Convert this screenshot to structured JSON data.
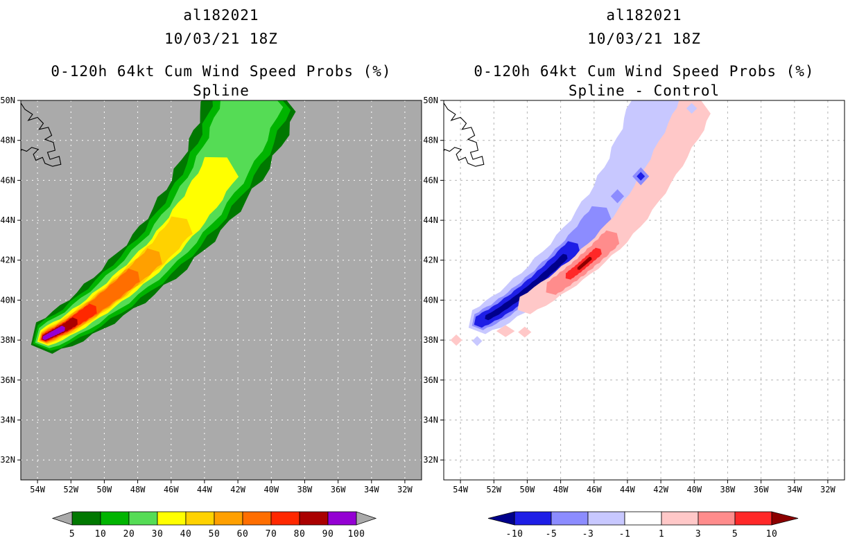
{
  "left_panel": {
    "storm_id": "al182021",
    "datetime": "10/03/21 18Z",
    "title": "0-120h 64kt Cum Wind Speed Probs (%)",
    "subtitle": "Spline"
  },
  "right_panel": {
    "storm_id": "al182021",
    "datetime": "10/03/21 18Z",
    "title": "0-120h 64kt Cum Wind Speed Probs (%)",
    "subtitle": "Spline - Control"
  },
  "map": {
    "projection": "lat-lon",
    "coastline_lon_lat": [
      [
        55.1,
        50.0
      ],
      [
        54.75,
        49.55
      ],
      [
        54.3,
        49.3
      ],
      [
        54.55,
        49.0
      ],
      [
        54.0,
        49.15
      ],
      [
        53.65,
        48.85
      ],
      [
        53.9,
        48.55
      ],
      [
        53.35,
        48.65
      ],
      [
        53.15,
        48.25
      ],
      [
        53.55,
        48.05
      ],
      [
        53.05,
        47.9
      ],
      [
        52.95,
        47.5
      ],
      [
        53.4,
        47.4
      ],
      [
        53.25,
        47.05
      ],
      [
        52.7,
        47.2
      ],
      [
        52.6,
        46.8
      ],
      [
        53.1,
        46.7
      ],
      [
        53.55,
        46.85
      ],
      [
        53.7,
        47.15
      ],
      [
        54.1,
        47.0
      ],
      [
        54.25,
        47.3
      ],
      [
        53.95,
        47.55
      ],
      [
        54.35,
        47.65
      ],
      [
        54.65,
        47.45
      ],
      [
        54.95,
        47.55
      ],
      [
        55.1,
        47.3
      ]
    ]
  },
  "chart_data": [
    {
      "type": "heatmap",
      "subtype": "filled-contour-map",
      "name": "cumulative_wind_speed_probability",
      "units": "%",
      "background": "#aaaaaa",
      "grid_color": "#ffffff",
      "grid_dash": "2 6",
      "x_axis": {
        "labels": [
          "54W",
          "52W",
          "50W",
          "48W",
          "46W",
          "44W",
          "42W",
          "40W",
          "38W",
          "36W",
          "34W",
          "32W"
        ],
        "values_deg_w": [
          54,
          52,
          50,
          48,
          46,
          44,
          42,
          40,
          38,
          36,
          34,
          32
        ],
        "range_deg_w": [
          55,
          31
        ]
      },
      "y_axis": {
        "labels": [
          "50N",
          "48N",
          "46N",
          "44N",
          "42N",
          "40N",
          "38N",
          "36N",
          "34N",
          "32N"
        ],
        "values_deg_n": [
          50,
          48,
          46,
          44,
          42,
          40,
          38,
          36,
          34,
          32
        ],
        "range_deg_n": [
          50,
          31
        ]
      },
      "levels": [
        5,
        10,
        20,
        30,
        40,
        50,
        60,
        70,
        80,
        90,
        100
      ],
      "colorbar": {
        "labels": [
          "5",
          "10",
          "20",
          "30",
          "40",
          "50",
          "60",
          "70",
          "80",
          "90",
          "100"
        ],
        "segment_colors": [
          "#007800",
          "#00b400",
          "#55dc55",
          "#ffff00",
          "#ffd200",
          "#ffa000",
          "#ff6e00",
          "#ff2800",
          "#aa0000",
          "#9400d3"
        ],
        "below_color": "#aaaaaa",
        "above_color": "#aaaaaa"
      },
      "swaths": [
        {
          "name": "probability-swath",
          "centerline_lon_lat": [
            [
              53.6,
              38.1
            ],
            [
              52.2,
              38.7
            ],
            [
              50.8,
              39.5
            ],
            [
              49.4,
              40.4
            ],
            [
              48.0,
              41.4
            ],
            [
              46.6,
              42.5
            ],
            [
              45.4,
              43.7
            ],
            [
              44.3,
              44.9
            ],
            [
              43.3,
              46.2
            ],
            [
              42.4,
              47.5
            ],
            [
              41.7,
              48.8
            ],
            [
              41.1,
              50.2
            ]
          ],
          "bands": [
            {
              "level": 5,
              "color": "#007800",
              "t": [
                0,
                1
              ],
              "halfwidth_deg": [
                0.95,
                2.55
              ]
            },
            {
              "level": 10,
              "color": "#00b400",
              "t": [
                0,
                1
              ],
              "halfwidth_deg": [
                0.8,
                2.1
              ]
            },
            {
              "level": 20,
              "color": "#55dc55",
              "t": [
                0,
                1
              ],
              "halfwidth_deg": [
                0.65,
                1.65
              ]
            },
            {
              "level": 30,
              "color": "#ffff00",
              "t": [
                0,
                0.76
              ],
              "halfwidth_deg": [
                0.5,
                1.0
              ]
            },
            {
              "level": 40,
              "color": "#ffd200",
              "t": [
                0,
                0.55
              ],
              "halfwidth_deg": [
                0.4,
                0.7
              ]
            },
            {
              "level": 50,
              "color": "#ffa000",
              "t": [
                0,
                0.43
              ],
              "halfwidth_deg": [
                0.34,
                0.56
              ]
            },
            {
              "level": 60,
              "color": "#ff6e00",
              "t": [
                0,
                0.35
              ],
              "halfwidth_deg": [
                0.28,
                0.46
              ]
            },
            {
              "level": 70,
              "color": "#ff2800",
              "t": [
                0,
                0.19
              ],
              "halfwidth_deg": [
                0.23,
                0.34
              ]
            },
            {
              "level": 80,
              "color": "#aa0000",
              "t": [
                0,
                0.12
              ],
              "halfwidth_deg": [
                0.18,
                0.25
              ]
            },
            {
              "level": 90,
              "color": "#9400d3",
              "t": [
                0,
                0.075
              ],
              "halfwidth_deg": [
                0.12,
                0.16
              ]
            }
          ]
        }
      ],
      "spots": []
    },
    {
      "type": "heatmap",
      "subtype": "filled-contour-difference-map",
      "name": "probability_difference_spline_minus_control",
      "units": "%",
      "background": "#ffffff",
      "grid_color": "#b4b4b4",
      "grid_dash": "3 5",
      "x_axis": {
        "labels": [
          "54W",
          "52W",
          "50W",
          "48W",
          "46W",
          "44W",
          "42W",
          "40W",
          "38W",
          "36W",
          "34W",
          "32W"
        ],
        "values_deg_w": [
          54,
          52,
          50,
          48,
          46,
          44,
          42,
          40,
          38,
          36,
          34,
          32
        ],
        "range_deg_w": [
          55,
          31
        ]
      },
      "y_axis": {
        "labels": [
          "50N",
          "48N",
          "46N",
          "44N",
          "42N",
          "40N",
          "38N",
          "36N",
          "34N",
          "32N"
        ],
        "values_deg_n": [
          50,
          48,
          46,
          44,
          42,
          40,
          38,
          36,
          34,
          32
        ],
        "range_deg_n": [
          50,
          31
        ]
      },
      "levels": [
        -10,
        -5,
        -3,
        -1,
        1,
        3,
        5,
        10
      ],
      "colorbar": {
        "labels": [
          "-10",
          "-5",
          "-3",
          "-1",
          "1",
          "3",
          "5",
          "10"
        ],
        "segment_colors": [
          "#1e1ee6",
          "#8c8cff",
          "#c8c8ff",
          "#ffffff",
          "#ffc8c8",
          "#ff8c8c",
          "#ff2828"
        ],
        "below_color": "#00008b",
        "above_color": "#8b0000"
      },
      "swaths": [
        {
          "name": "negative-difference-swath",
          "centerline_lon_lat": [
            [
              52.9,
              38.9
            ],
            [
              51.8,
              39.4
            ],
            [
              50.6,
              40.1
            ],
            [
              49.4,
              40.9
            ],
            [
              48.2,
              41.8
            ],
            [
              47.0,
              42.8
            ],
            [
              45.9,
              43.9
            ],
            [
              44.9,
              45.0
            ],
            [
              44.0,
              46.2
            ],
            [
              43.2,
              47.5
            ],
            [
              42.5,
              48.8
            ],
            [
              42.0,
              50.1
            ]
          ],
          "bands": [
            {
              "level": -1,
              "color": "#c8c8ff",
              "t": [
                0,
                1
              ],
              "halfwidth_deg": [
                0.75,
                1.6
              ]
            },
            {
              "level": -3,
              "color": "#8c8cff",
              "t": [
                0,
                0.58
              ],
              "halfwidth_deg": [
                0.5,
                0.7
              ]
            },
            {
              "level": -5,
              "color": "#1e1ee6",
              "t": [
                0,
                0.44
              ],
              "halfwidth_deg": [
                0.35,
                0.48
              ]
            },
            {
              "level": -10,
              "color": "#00008b",
              "t": [
                0.04,
                0.4
              ],
              "halfwidth_deg": [
                0.15,
                0.18
              ]
            }
          ]
        },
        {
          "name": "positive-difference-swath",
          "centerline_lon_lat": [
            [
              50.4,
              39.6
            ],
            [
              49.2,
              40.2
            ],
            [
              48.0,
              40.9
            ],
            [
              46.9,
              41.6
            ],
            [
              45.8,
              42.4
            ],
            [
              44.7,
              43.3
            ],
            [
              43.7,
              44.3
            ],
            [
              42.8,
              45.4
            ],
            [
              41.9,
              46.6
            ],
            [
              41.1,
              47.8
            ],
            [
              40.3,
              49.0
            ],
            [
              39.8,
              50.0
            ]
          ],
          "bands": [
            {
              "level": 1,
              "color": "#ffc8c8",
              "t": [
                0.02,
                0.97
              ],
              "halfwidth_deg": [
                0.55,
                0.95
              ]
            },
            {
              "level": 3,
              "color": "#ff8c8c",
              "t": [
                0.14,
                0.44
              ],
              "halfwidth_deg": [
                0.42,
                0.52
              ]
            },
            {
              "level": 5,
              "color": "#ff2828",
              "t": [
                0.22,
                0.37
              ],
              "halfwidth_deg": [
                0.22,
                0.25
              ]
            },
            {
              "level": 10,
              "color": "#8b0000",
              "t": [
                0.27,
                0.33
              ],
              "halfwidth_deg": [
                0.09,
                0.1
              ]
            }
          ]
        }
      ],
      "spots": [
        {
          "value_range": "1 to 3",
          "color": "#ffc8c8",
          "lon": 54.25,
          "lat": 38.0,
          "rlon": 0.35,
          "rlat": 0.28
        },
        {
          "value_range": "-3 to -1",
          "color": "#c8c8ff",
          "lon": 53.0,
          "lat": 37.95,
          "rlon": 0.3,
          "rlat": 0.25
        },
        {
          "value_range": "1 to 3",
          "color": "#ffc8c8",
          "lon": 51.3,
          "lat": 38.45,
          "rlon": 0.55,
          "rlat": 0.3
        },
        {
          "value_range": "1 to 3",
          "color": "#ffc8c8",
          "lon": 50.15,
          "lat": 38.4,
          "rlon": 0.4,
          "rlat": 0.27
        },
        {
          "value_range": "-3 to -1",
          "color": "#c8c8ff",
          "lon": 40.15,
          "lat": 49.6,
          "rlon": 0.32,
          "rlat": 0.27
        },
        {
          "value_range": "-5 to -3",
          "color": "#8c8cff",
          "lon": 44.6,
          "lat": 45.2,
          "rlon": 0.4,
          "rlat": 0.35
        },
        {
          "value_range": "-5 to -3",
          "color": "#8c8cff",
          "lon": 43.2,
          "lat": 46.2,
          "rlon": 0.5,
          "rlat": 0.45
        },
        {
          "value_range": "-10 to -5",
          "color": "#1e1ee6",
          "lon": 43.2,
          "lat": 46.2,
          "rlon": 0.25,
          "rlat": 0.22
        }
      ]
    }
  ]
}
